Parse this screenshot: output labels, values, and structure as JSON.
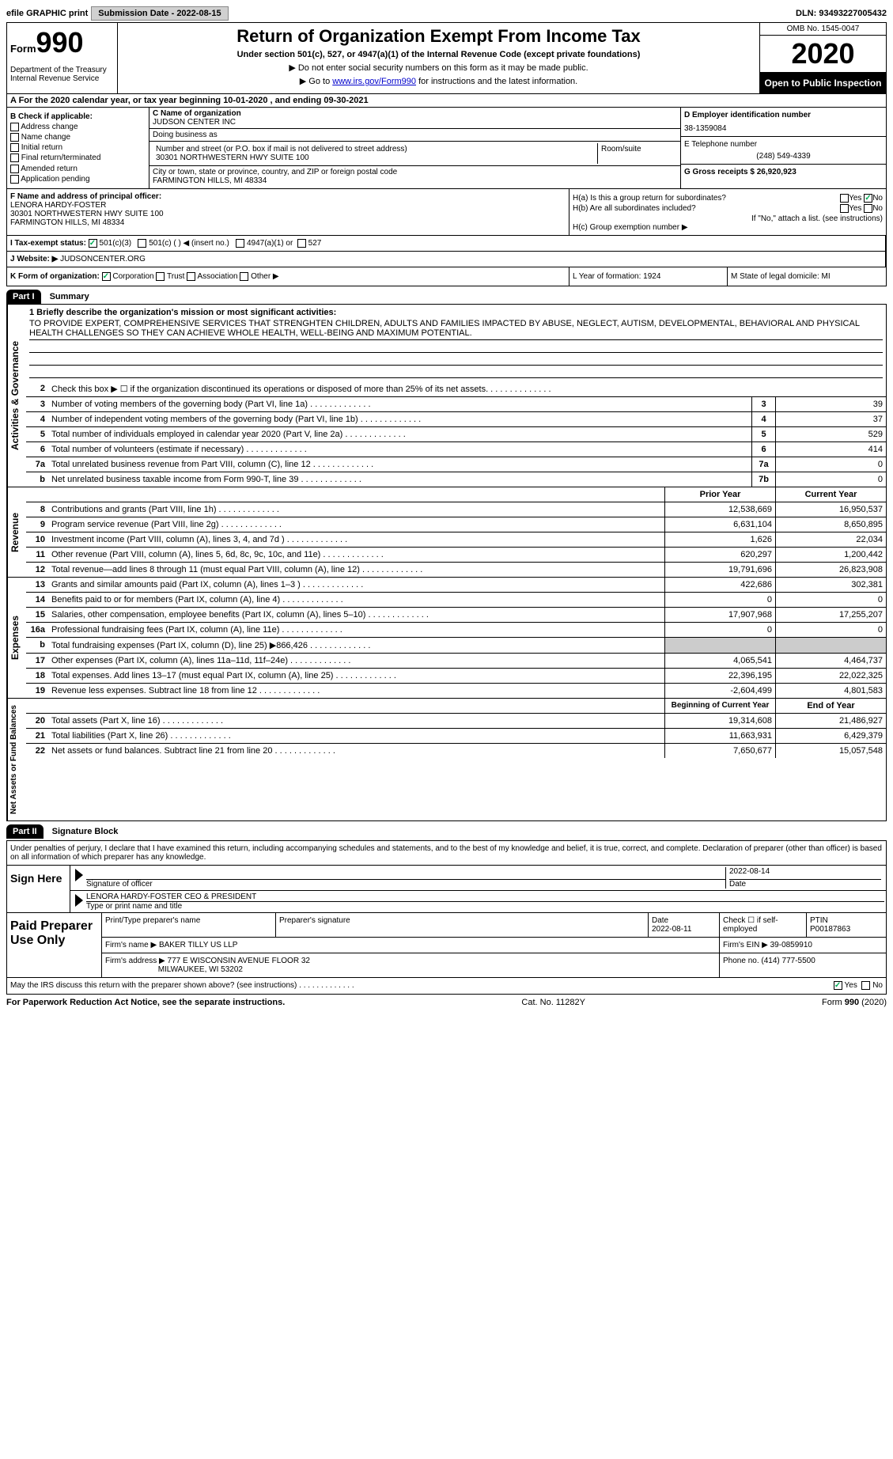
{
  "topbar": {
    "efile": "efile GRAPHIC print",
    "submission": "Submission Date - 2022-08-15",
    "dln": "DLN: 93493227005432"
  },
  "header": {
    "form_prefix": "Form",
    "form_num": "990",
    "dept": "Department of the Treasury\nInternal Revenue Service",
    "title": "Return of Organization Exempt From Income Tax",
    "subtitle": "Under section 501(c), 527, or 4947(a)(1) of the Internal Revenue Code (except private foundations)",
    "note1": "▶ Do not enter social security numbers on this form as it may be made public.",
    "note2_pre": "▶ Go to ",
    "note2_link": "www.irs.gov/Form990",
    "note2_post": " for instructions and the latest information.",
    "omb": "OMB No. 1545-0047",
    "year": "2020",
    "inspection": "Open to Public Inspection"
  },
  "row_a": "A For the 2020 calendar year, or tax year beginning 10-01-2020     , and ending 09-30-2021",
  "col_b": {
    "title": "B Check if applicable:",
    "items": [
      "Address change",
      "Name change",
      "Initial return",
      "Final return/terminated",
      "Amended return",
      "Application pending"
    ]
  },
  "col_c": {
    "name_label": "C Name of organization",
    "name": "JUDSON CENTER INC",
    "dba_label": "Doing business as",
    "dba": "",
    "addr_label": "Number and street (or P.O. box if mail is not delivered to street address)",
    "room_label": "Room/suite",
    "addr": "30301 NORTHWESTERN HWY SUITE 100",
    "city_label": "City or town, state or province, country, and ZIP or foreign postal code",
    "city": "FARMINGTON HILLS, MI  48334"
  },
  "col_d": {
    "ein_label": "D Employer identification number",
    "ein": "38-1359084",
    "phone_label": "E Telephone number",
    "phone": "(248) 549-4339",
    "gross_label": "G Gross receipts $ 26,920,923"
  },
  "col_f": {
    "label": "F Name and address of principal officer:",
    "name": "LENORA HARDY-FOSTER",
    "addr1": "30301 NORTHWESTERN HWY SUITE 100",
    "addr2": "FARMINGTON HILLS, MI  48334"
  },
  "col_h": {
    "ha": "H(a)  Is this a group return for subordinates?",
    "hb": "H(b)  Are all subordinates included?",
    "hb_note": "If \"No,\" attach a list. (see instructions)",
    "hc": "H(c)  Group exemption number ▶",
    "yes": "Yes",
    "no": "No"
  },
  "row_i": "I   Tax-exempt status:",
  "row_i_opts": [
    "501(c)(3)",
    "501(c) (  ) ◀ (insert no.)",
    "4947(a)(1) or",
    "527"
  ],
  "row_j_label": "J   Website: ▶",
  "row_j_val": "  JUDSONCENTER.ORG",
  "row_k": {
    "label": "K Form of organization:",
    "opts": [
      "Corporation",
      "Trust",
      "Association",
      "Other ▶"
    ],
    "year": "L Year of formation: 1924",
    "state": "M State of legal domicile: MI"
  },
  "part1": {
    "num": "Part I",
    "title": "Summary"
  },
  "mission": {
    "label": "1   Briefly describe the organization's mission or most significant activities:",
    "text": "TO PROVIDE EXPERT, COMPREHENSIVE SERVICES THAT STRENGHTEN CHILDREN, ADULTS AND FAMILIES IMPACTED BY ABUSE, NEGLECT, AUTISM, DEVELOPMENTAL, BEHAVIORAL AND PHYSICAL HEALTH CHALLENGES SO THEY CAN ACHIEVE WHOLE HEALTH, WELL-BEING AND MAXIMUM POTENTIAL."
  },
  "gov_label": "Activities & Governance",
  "gov_lines": [
    {
      "n": "2",
      "t": "Check this box ▶ ☐  if the organization discontinued its operations or disposed of more than 25% of its net assets.",
      "b": "",
      "v": ""
    },
    {
      "n": "3",
      "t": "Number of voting members of the governing body (Part VI, line 1a)",
      "b": "3",
      "v": "39"
    },
    {
      "n": "4",
      "t": "Number of independent voting members of the governing body (Part VI, line 1b)",
      "b": "4",
      "v": "37"
    },
    {
      "n": "5",
      "t": "Total number of individuals employed in calendar year 2020 (Part V, line 2a)",
      "b": "5",
      "v": "529"
    },
    {
      "n": "6",
      "t": "Total number of volunteers (estimate if necessary)",
      "b": "6",
      "v": "414"
    },
    {
      "n": "7a",
      "t": "Total unrelated business revenue from Part VIII, column (C), line 12",
      "b": "7a",
      "v": "0"
    },
    {
      "n": "b",
      "t": "Net unrelated business taxable income from Form 990-T, line 39",
      "b": "7b",
      "v": "0"
    }
  ],
  "rev_label": "Revenue",
  "col_headers": {
    "prior": "Prior Year",
    "current": "Current Year"
  },
  "rev_lines": [
    {
      "n": "8",
      "t": "Contributions and grants (Part VIII, line 1h)",
      "p": "12,538,669",
      "c": "16,950,537"
    },
    {
      "n": "9",
      "t": "Program service revenue (Part VIII, line 2g)",
      "p": "6,631,104",
      "c": "8,650,895"
    },
    {
      "n": "10",
      "t": "Investment income (Part VIII, column (A), lines 3, 4, and 7d )",
      "p": "1,626",
      "c": "22,034"
    },
    {
      "n": "11",
      "t": "Other revenue (Part VIII, column (A), lines 5, 6d, 8c, 9c, 10c, and 11e)",
      "p": "620,297",
      "c": "1,200,442"
    },
    {
      "n": "12",
      "t": "Total revenue—add lines 8 through 11 (must equal Part VIII, column (A), line 12)",
      "p": "19,791,696",
      "c": "26,823,908"
    }
  ],
  "exp_label": "Expenses",
  "exp_lines": [
    {
      "n": "13",
      "t": "Grants and similar amounts paid (Part IX, column (A), lines 1–3 )",
      "p": "422,686",
      "c": "302,381"
    },
    {
      "n": "14",
      "t": "Benefits paid to or for members (Part IX, column (A), line 4)",
      "p": "0",
      "c": "0"
    },
    {
      "n": "15",
      "t": "Salaries, other compensation, employee benefits (Part IX, column (A), lines 5–10)",
      "p": "17,907,968",
      "c": "17,255,207"
    },
    {
      "n": "16a",
      "t": "Professional fundraising fees (Part IX, column (A), line 11e)",
      "p": "0",
      "c": "0"
    },
    {
      "n": "b",
      "t": "Total fundraising expenses (Part IX, column (D), line 25) ▶866,426",
      "p": "",
      "c": ""
    },
    {
      "n": "17",
      "t": "Other expenses (Part IX, column (A), lines 11a–11d, 11f–24e)",
      "p": "4,065,541",
      "c": "4,464,737"
    },
    {
      "n": "18",
      "t": "Total expenses. Add lines 13–17 (must equal Part IX, column (A), line 25)",
      "p": "22,396,195",
      "c": "22,022,325"
    },
    {
      "n": "19",
      "t": "Revenue less expenses. Subtract line 18 from line 12",
      "p": "-2,604,499",
      "c": "4,801,583"
    }
  ],
  "net_label": "Net Assets or Fund Balances",
  "net_headers": {
    "begin": "Beginning of Current Year",
    "end": "End of Year"
  },
  "net_lines": [
    {
      "n": "20",
      "t": "Total assets (Part X, line 16)",
      "p": "19,314,608",
      "c": "21,486,927"
    },
    {
      "n": "21",
      "t": "Total liabilities (Part X, line 26)",
      "p": "11,663,931",
      "c": "6,429,379"
    },
    {
      "n": "22",
      "t": "Net assets or fund balances. Subtract line 21 from line 20",
      "p": "7,650,677",
      "c": "15,057,548"
    }
  ],
  "part2": {
    "num": "Part II",
    "title": "Signature Block"
  },
  "sig": {
    "declaration": "Under penalties of perjury, I declare that I have examined this return, including accompanying schedules and statements, and to the best of my knowledge and belief, it is true, correct, and complete. Declaration of preparer (other than officer) is based on all information of which preparer has any knowledge.",
    "sign_here": "Sign Here",
    "sig_officer": "Signature of officer",
    "date": "Date",
    "sig_date": "2022-08-14",
    "name_title": "LENORA HARDY-FOSTER  CEO & PRESIDENT",
    "type_name": "Type or print name and title"
  },
  "prep": {
    "label": "Paid Preparer Use Only",
    "print_name": "Print/Type preparer's name",
    "prep_sig": "Preparer's signature",
    "date_label": "Date",
    "date": "2022-08-11",
    "check_label": "Check ☐ if self-employed",
    "ptin_label": "PTIN",
    "ptin": "P00187863",
    "firm_name_label": "Firm's name      ▶",
    "firm_name": "BAKER TILLY US LLP",
    "firm_ein_label": "Firm's EIN ▶",
    "firm_ein": "39-0859910",
    "firm_addr_label": "Firm's address ▶",
    "firm_addr": "777 E WISCONSIN AVENUE FLOOR 32",
    "firm_city": "MILWAUKEE, WI  53202",
    "phone_label": "Phone no.",
    "phone": "(414) 777-5500"
  },
  "discuss": "May the IRS discuss this return with the preparer shown above? (see instructions)",
  "footer": {
    "left": "For Paperwork Reduction Act Notice, see the separate instructions.",
    "mid": "Cat. No. 11282Y",
    "right_pre": "Form ",
    "right_form": "990",
    "right_post": " (2020)"
  }
}
